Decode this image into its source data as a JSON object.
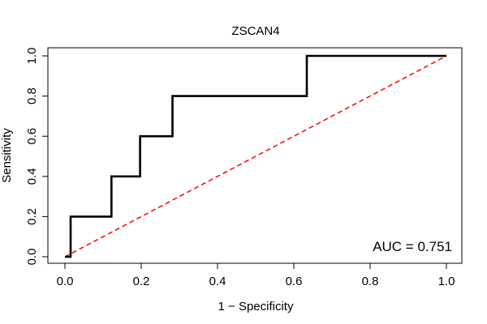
{
  "chart_data": {
    "type": "line",
    "title": "ZSCAN4",
    "xlabel": "1 − Specificity",
    "ylabel": "Sensitivity",
    "xlim": [
      0,
      1
    ],
    "ylim": [
      0,
      1
    ],
    "x_ticks": [
      "0.0",
      "0.2",
      "0.4",
      "0.6",
      "0.8",
      "1.0"
    ],
    "y_ticks": [
      "0.0",
      "0.2",
      "0.4",
      "0.6",
      "0.8",
      "1.0"
    ],
    "grid": false,
    "annotation": "AUC = 0.751",
    "series": [
      {
        "name": "ROC curve",
        "color": "#000000",
        "style": "solid",
        "x": [
          0.0,
          0.015,
          0.015,
          0.122,
          0.122,
          0.197,
          0.197,
          0.282,
          0.282,
          0.634,
          0.634,
          1.0
        ],
        "y": [
          0.0,
          0.0,
          0.2,
          0.2,
          0.4,
          0.4,
          0.6,
          0.6,
          0.8,
          0.8,
          1.0,
          1.0
        ]
      },
      {
        "name": "Reference diagonal",
        "color": "#ff0000",
        "style": "dashed",
        "x": [
          0.0,
          1.0
        ],
        "y": [
          0.0,
          1.0
        ]
      }
    ]
  }
}
